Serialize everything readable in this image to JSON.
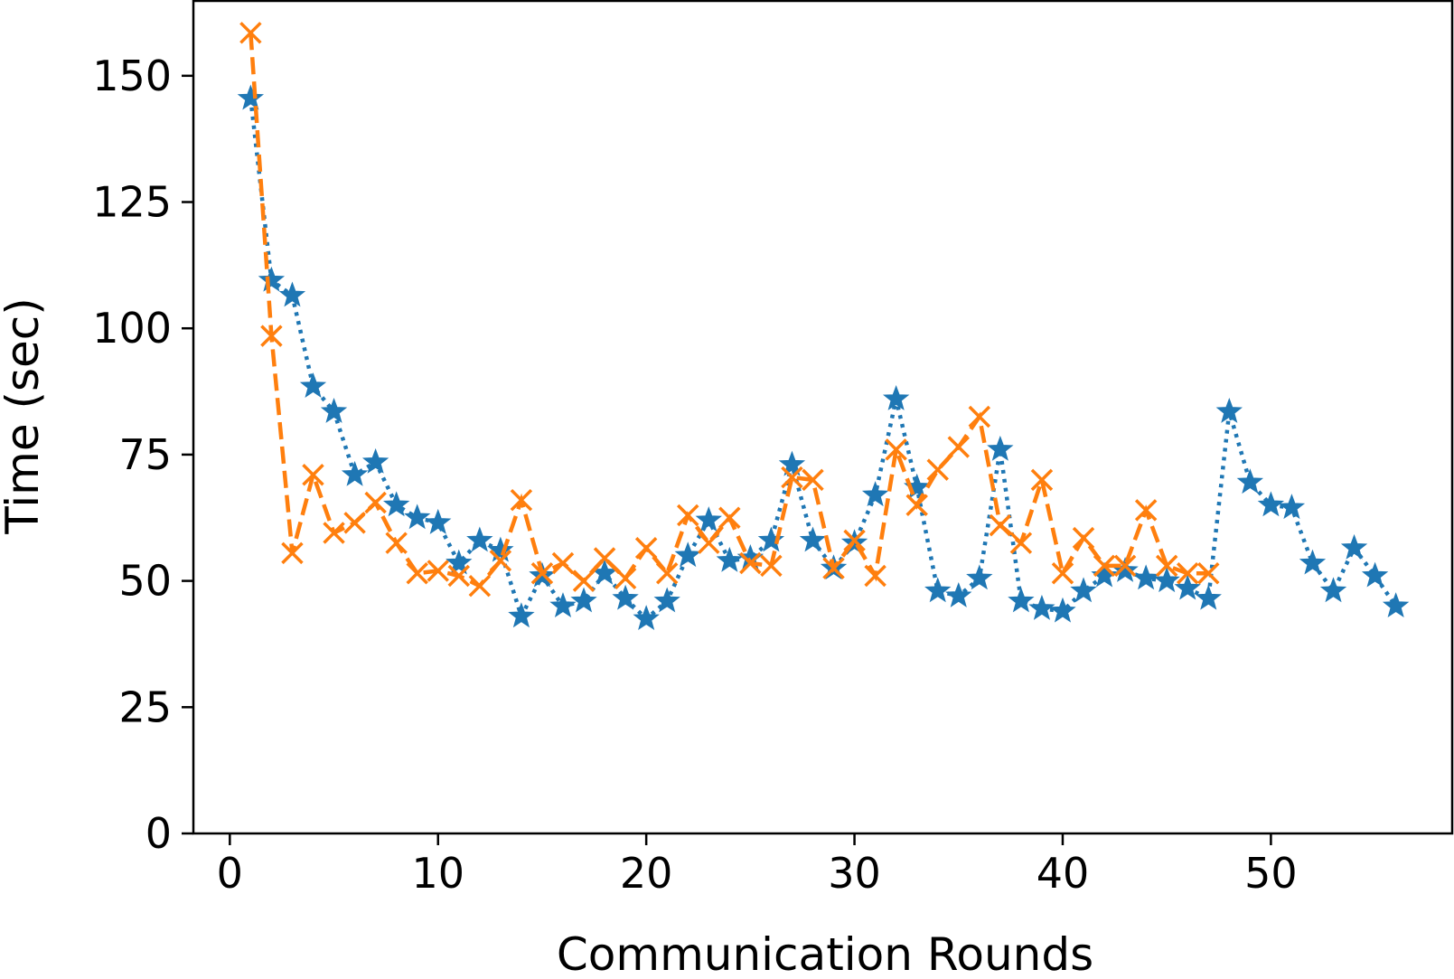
{
  "chart_data": {
    "type": "line",
    "title": "",
    "xlabel": "Communication Rounds",
    "ylabel": "Time (sec)",
    "xlim": [
      -1.75,
      58.75
    ],
    "ylim": [
      0,
      165
    ],
    "xticks": [
      0,
      10,
      20,
      30,
      40,
      50
    ],
    "yticks": [
      0,
      25,
      50,
      75,
      100,
      125,
      150
    ],
    "grid": false,
    "legend": null,
    "series": [
      {
        "color": "#1f77b4",
        "linestyle": "dotted",
        "marker": "star",
        "x": [
          1,
          2,
          3,
          4,
          5,
          6,
          7,
          8,
          9,
          10,
          11,
          12,
          13,
          14,
          15,
          16,
          17,
          18,
          19,
          20,
          21,
          22,
          23,
          24,
          25,
          26,
          27,
          28,
          29,
          30,
          31,
          32,
          33,
          34,
          35,
          36,
          37,
          38,
          39,
          40,
          41,
          42,
          43,
          44,
          45,
          46,
          47,
          48,
          49,
          50,
          51,
          52,
          53,
          54,
          55,
          56
        ],
        "y": [
          145.5,
          109.5,
          106.5,
          88.5,
          83.5,
          71,
          73.5,
          65,
          62.5,
          61.5,
          53.5,
          58,
          56,
          43,
          51,
          45,
          46,
          51.5,
          46.5,
          42.5,
          46,
          55,
          62,
          54,
          54.5,
          58,
          73,
          58,
          52.5,
          57.5,
          67,
          86,
          68.5,
          48,
          47,
          50.5,
          76,
          46,
          44.5,
          44,
          48,
          51,
          52,
          50.5,
          50,
          48.5,
          46.5,
          83.5,
          69.5,
          65,
          64.5,
          53.5,
          48,
          56.5,
          51,
          45
        ]
      },
      {
        "color": "#ff7f0e",
        "linestyle": "dashed",
        "marker": "x",
        "x": [
          1,
          2,
          3,
          4,
          5,
          6,
          7,
          8,
          9,
          10,
          11,
          12,
          13,
          14,
          15,
          16,
          17,
          18,
          19,
          20,
          21,
          22,
          23,
          24,
          25,
          26,
          27,
          28,
          29,
          30,
          31,
          32,
          33,
          34,
          35,
          36,
          37,
          38,
          39,
          40,
          41,
          42,
          43,
          44,
          45,
          46,
          47
        ],
        "y": [
          158.5,
          98.5,
          55.5,
          71,
          59.5,
          61.5,
          65.5,
          57.5,
          51.5,
          52,
          51,
          49,
          54,
          66,
          51.5,
          53.5,
          50,
          54.5,
          50.5,
          56.5,
          51.5,
          63,
          57.5,
          62.5,
          53.5,
          53,
          70.5,
          70,
          52.5,
          58,
          51,
          76,
          65,
          72,
          76.5,
          82.5,
          61,
          57.5,
          70,
          51.5,
          58.5,
          53,
          53,
          64,
          53,
          51.5,
          51.5
        ]
      }
    ]
  }
}
